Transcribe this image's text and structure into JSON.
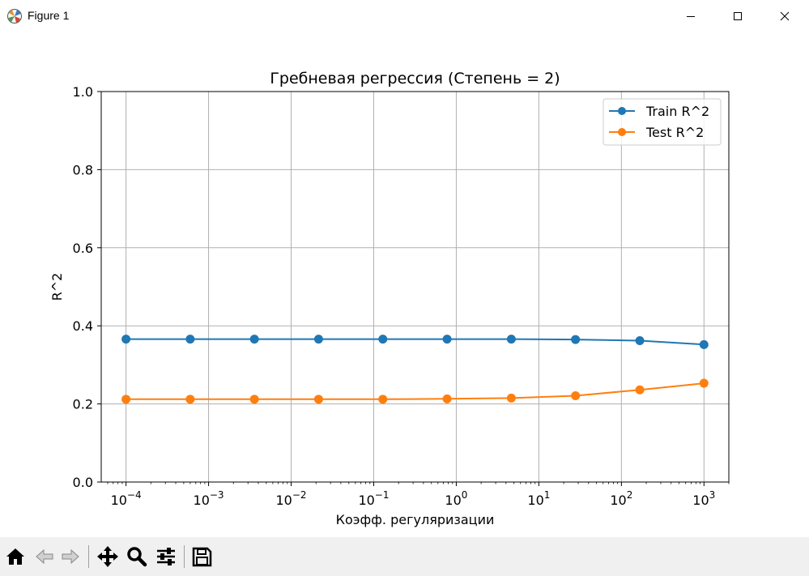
{
  "window": {
    "title": "Figure 1"
  },
  "toolbar": {
    "buttons": [
      "home-icon",
      "back-arrow-icon",
      "forward-arrow-icon",
      "pan-icon",
      "zoom-icon",
      "configure-subplots-icon",
      "save-icon"
    ]
  },
  "chart_data": {
    "type": "line",
    "title": "Гребневая регрессия (Степень = 2)",
    "xlabel": "Коэфф. регуляризации",
    "ylabel": "R^2",
    "xscale": "log",
    "xlim": [
      5.01e-05,
      2000
    ],
    "ylim": [
      0,
      1.0
    ],
    "grid": true,
    "legend_position": "upper-right",
    "x": [
      0.0001,
      0.000599,
      0.00359,
      0.0215,
      0.129,
      0.774,
      4.64,
      27.8,
      167,
      1000
    ],
    "series": [
      {
        "name": "Train R^2",
        "color": "#1f77b4",
        "values": [
          0.366,
          0.366,
          0.366,
          0.366,
          0.366,
          0.366,
          0.366,
          0.365,
          0.362,
          0.352
        ]
      },
      {
        "name": "Test R^2",
        "color": "#ff7f0e",
        "values": [
          0.212,
          0.212,
          0.212,
          0.212,
          0.212,
          0.213,
          0.215,
          0.221,
          0.236,
          0.253
        ]
      }
    ],
    "yticks": [
      "0.0",
      "0.2",
      "0.4",
      "0.6",
      "0.8",
      "1.0"
    ],
    "xticks": [
      {
        "base": "10",
        "exp": "−4"
      },
      {
        "base": "10",
        "exp": "−3"
      },
      {
        "base": "10",
        "exp": "−2"
      },
      {
        "base": "10",
        "exp": "−1"
      },
      {
        "base": "10",
        "exp": "0"
      },
      {
        "base": "10",
        "exp": "1"
      },
      {
        "base": "10",
        "exp": "2"
      },
      {
        "base": "10",
        "exp": "3"
      }
    ]
  }
}
